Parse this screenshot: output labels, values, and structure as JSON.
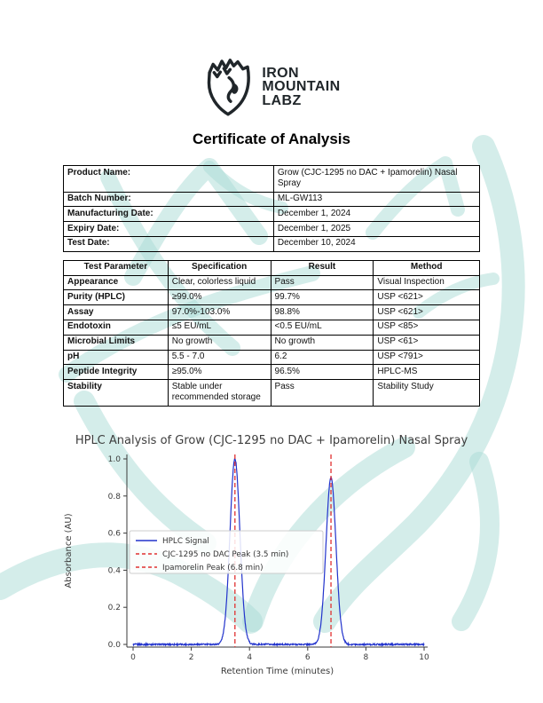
{
  "logo": {
    "line1": "IRON",
    "line2": "MOUNTAIN",
    "line3": "LABZ"
  },
  "title": "Certificate of Analysis",
  "product_info": {
    "rows": [
      {
        "label": "Product Name:",
        "value": "Grow (CJC-1295 no DAC + Ipamorelin) Nasal Spray"
      },
      {
        "label": "Batch Number:",
        "value": "ML-GW113"
      },
      {
        "label": "Manufacturing Date:",
        "value": "December 1, 2024"
      },
      {
        "label": "Expiry Date:",
        "value": "December 1, 2025"
      },
      {
        "label": "Test Date:",
        "value": "December 10, 2024"
      }
    ]
  },
  "test_table": {
    "headers": [
      "Test Parameter",
      "Specification",
      "Result",
      "Method"
    ],
    "rows": [
      [
        "Appearance",
        "Clear, colorless liquid",
        "Pass",
        "Visual Inspection"
      ],
      [
        "Purity (HPLC)",
        "≥99.0%",
        "99.7%",
        "USP <621>"
      ],
      [
        "Assay",
        "97.0%-103.0%",
        "98.8%",
        "USP <621>"
      ],
      [
        "Endotoxin",
        "≤5 EU/mL",
        "<0.5 EU/mL",
        "USP <85>"
      ],
      [
        "Microbial Limits",
        "No growth",
        "No growth",
        "USP <61>"
      ],
      [
        "pH",
        "5.5 - 7.0",
        "6.2",
        "USP <791>"
      ],
      [
        "Peptide Integrity",
        "≥95.0%",
        "96.5%",
        "HPLC-MS"
      ],
      [
        "Stability",
        "Stable under recommended storage",
        "Pass",
        "Stability Study"
      ]
    ]
  },
  "chart_data": {
    "type": "line",
    "title": "HPLC Analysis of Grow (CJC-1295 no DAC + Ipamorelin) Nasal Spray",
    "xlabel": "Retention Time (minutes)",
    "ylabel": "Absorbance (AU)",
    "x_range": [
      0,
      10
    ],
    "xticks": [
      0,
      2,
      4,
      6,
      8,
      10
    ],
    "yticks": [
      0.0,
      0.2,
      0.4,
      0.6,
      0.8,
      1.0
    ],
    "ylim": [
      -0.015,
      1.04
    ],
    "grid": false,
    "signal_color": "#2233cc",
    "marker_color": "#e03030",
    "series": [
      {
        "name": "HPLC Signal",
        "baseline": 0.0,
        "baseline_noise": 0.004,
        "peaks": [
          {
            "center": 3.5,
            "height": 1.0,
            "sigma": 0.17
          },
          {
            "center": 6.8,
            "height": 0.9,
            "sigma": 0.17
          }
        ]
      }
    ],
    "markers": [
      {
        "label": "CJC-1295 no DAC Peak (3.5 min)",
        "x": 3.5
      },
      {
        "label": "Ipamorelin Peak (6.8 min)",
        "x": 6.8
      }
    ],
    "legend": {
      "position": "center-left",
      "entries": [
        {
          "label": "HPLC Signal",
          "color": "#2233cc",
          "dash": false
        },
        {
          "label": "CJC-1295 no DAC Peak (3.5 min)",
          "color": "#e03030",
          "dash": true
        },
        {
          "label": "Ipamorelin Peak (6.8 min)",
          "color": "#e03030",
          "dash": true
        }
      ]
    }
  },
  "watermark_color": "#aadcd6"
}
